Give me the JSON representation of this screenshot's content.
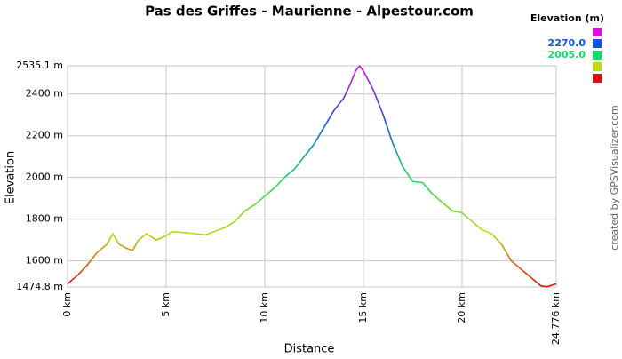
{
  "chart_data": {
    "type": "line",
    "title": "Pas des Griffes - Maurienne - Alpestour.com",
    "x_label": "Distance",
    "y_label": "Elevation",
    "credit": "created by GPSVisualizer.com",
    "x": [
      0,
      0.5,
      1.0,
      1.5,
      2.0,
      2.3,
      2.6,
      3.0,
      3.3,
      3.6,
      4.0,
      4.5,
      5.0,
      5.3,
      6.0,
      7.0,
      8.0,
      8.5,
      9.0,
      9.5,
      10,
      10.5,
      11,
      11.5,
      12,
      12.5,
      13,
      13.5,
      14,
      14.3,
      14.6,
      14.8,
      15,
      15.5,
      16,
      16.5,
      17,
      17.5,
      18,
      18.5,
      19,
      19.5,
      20,
      20.5,
      21,
      21.5,
      22,
      22.5,
      23,
      23.5,
      24,
      24.3,
      24.776
    ],
    "values": [
      1490,
      1530,
      1580,
      1640,
      1680,
      1730,
      1680,
      1660,
      1650,
      1700,
      1730,
      1700,
      1720,
      1740,
      1735,
      1725,
      1760,
      1790,
      1840,
      1870,
      1910,
      1950,
      2000,
      2040,
      2100,
      2160,
      2240,
      2320,
      2380,
      2440,
      2510,
      2535.1,
      2510,
      2420,
      2300,
      2160,
      2050,
      1980,
      1975,
      1920,
      1880,
      1840,
      1830,
      1790,
      1750,
      1730,
      1680,
      1600,
      1560,
      1520,
      1480,
      1476,
      1490
    ],
    "xlim": [
      0,
      24.776
    ],
    "ylim": [
      1474.8,
      2535.1
    ],
    "xticks": [
      {
        "value": 0,
        "label": "0 km"
      },
      {
        "value": 5,
        "label": "5 km"
      },
      {
        "value": 10,
        "label": "10 km"
      },
      {
        "value": 15,
        "label": "15 km"
      },
      {
        "value": 20,
        "label": "20 km"
      },
      {
        "value": 24.776,
        "label": "24.776 km"
      }
    ],
    "yticks": [
      {
        "value": 1474.8,
        "label": "1474.8 m"
      },
      {
        "value": 1600,
        "label": "1600 m"
      },
      {
        "value": 1800,
        "label": "1800 m"
      },
      {
        "value": 2000,
        "label": "2000 m"
      },
      {
        "value": 2200,
        "label": "2200 m"
      },
      {
        "value": 2400,
        "label": "2400 m"
      },
      {
        "value": 2535.1,
        "label": "2535.1 m"
      }
    ],
    "grid": true,
    "color_scale": {
      "title": "Elevation (m)",
      "items": [
        {
          "value": 2535.1,
          "color": "#dd11dd"
        },
        {
          "value": 2270,
          "label": "2270.0",
          "color": "#1155dd"
        },
        {
          "value": 2005,
          "label": "2005.0",
          "color": "#11dd66"
        },
        {
          "value": 1739.9,
          "color": "#bbdd11"
        },
        {
          "value": 1474.8,
          "color": "#dd1111"
        }
      ]
    }
  }
}
